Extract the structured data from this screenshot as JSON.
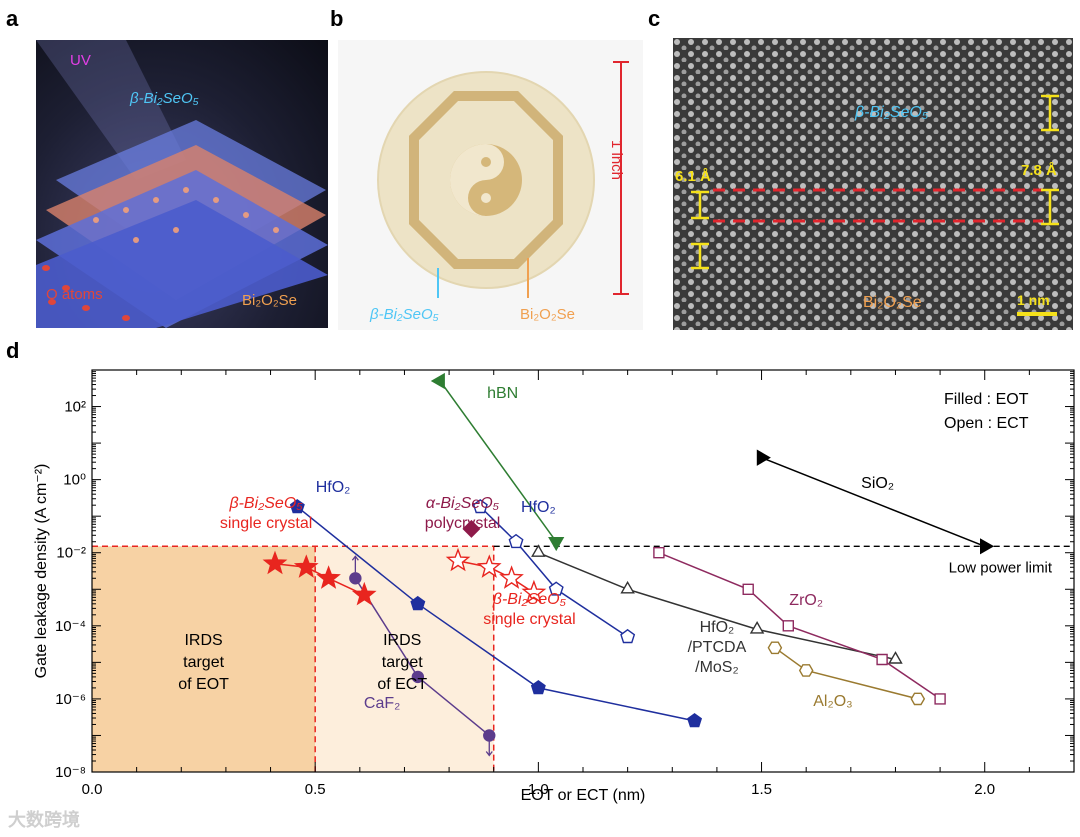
{
  "panels": {
    "a": {
      "letter": "a",
      "uv": "UV",
      "top_layer": "β-Bi₂SeO₅",
      "o_atoms": "O atoms",
      "bottom_layer": "Bi₂O₂Se"
    },
    "b": {
      "letter": "b",
      "scale": "1 inch",
      "left_label": "β-Bi₂SeO₅",
      "right_label": "Bi₂O₂Se"
    },
    "c": {
      "letter": "c",
      "top_label": "β-Bi₂SeO₅",
      "bottom_label": "Bi₂O₂Se",
      "d1": "6.1 Å",
      "d2": "7.8 Å",
      "scalebar": "1 nm"
    },
    "d": {
      "letter": "d"
    }
  },
  "watermark": "大数跨境",
  "colors": {
    "hbn": "#2e7d32",
    "hfo2": "#1f2f9e",
    "caf2": "#5c3c8c",
    "sio2": "#000000",
    "zro2": "#8e2a5f",
    "al2o3": "#9a7a30",
    "hfo2_ptcda": "#333333",
    "bisa": "#e8251f",
    "alpha": "#8e1a4a",
    "eot_region": "#f7d2a4",
    "ect_region": "#fdeedc"
  },
  "chart_data": {
    "type": "scatter",
    "xlabel": "EOT or ECT (nm)",
    "ylabel": "Gate leakage density (A cm⁻²)",
    "xlim": [
      0.0,
      2.2
    ],
    "ylim": [
      1e-08,
      1000
    ],
    "yscale": "log",
    "xticks": [
      "0.0",
      "0.5",
      "1.0",
      "1.5",
      "2.0"
    ],
    "yticks": [
      "10⁻⁸",
      "10⁻⁶",
      "10⁻⁴",
      "10⁻²",
      "10⁰",
      "10²"
    ],
    "legend_lines": [
      "Filled : EOT",
      "Open : ECT"
    ],
    "low_power_limit": {
      "y": 0.015,
      "label": "Low power limit"
    },
    "regions": [
      {
        "label": [
          "IRDS",
          "target",
          "of EOT"
        ],
        "x": [
          0,
          0.5
        ],
        "y": [
          1e-08,
          0.015
        ]
      },
      {
        "label": [
          "IRDS",
          "target",
          "of ECT"
        ],
        "x": [
          0.5,
          0.9
        ],
        "y": [
          1e-08,
          0.015
        ]
      }
    ],
    "series": [
      {
        "name": "hBN",
        "marker": "tri-left-down",
        "filled": true,
        "color_key": "hbn",
        "points": [
          [
            0.78,
            500
          ],
          [
            1.04,
            0.02
          ]
        ]
      },
      {
        "name": "SiO₂",
        "marker": "tri-right",
        "filled": true,
        "color_key": "sio2",
        "points": [
          [
            1.5,
            4
          ],
          [
            2.0,
            0.015
          ]
        ]
      },
      {
        "name": "HfO₂",
        "marker": "pentagon",
        "filled": true,
        "color_key": "hfo2",
        "points": [
          [
            0.46,
            0.18
          ],
          [
            0.73,
            0.0004
          ],
          [
            1.0,
            2e-06
          ],
          [
            1.35,
            2.5e-07
          ]
        ]
      },
      {
        "name": "HfO₂",
        "marker": "pentagon",
        "filled": false,
        "color_key": "hfo2",
        "points": [
          [
            0.87,
            0.18
          ],
          [
            0.95,
            0.02
          ],
          [
            1.04,
            0.001
          ],
          [
            1.2,
            5e-05
          ]
        ]
      },
      {
        "name": "CaF₂",
        "marker": "circle",
        "filled": true,
        "color_key": "caf2",
        "points": [
          [
            0.59,
            0.002
          ],
          [
            0.73,
            4e-06
          ],
          [
            0.89,
            1e-07
          ]
        ]
      },
      {
        "name": "β-Bi₂SeO₅ single crystal",
        "marker": "star",
        "filled": true,
        "color_key": "bisa",
        "points": [
          [
            0.41,
            0.005
          ],
          [
            0.48,
            0.004
          ],
          [
            0.53,
            0.002
          ],
          [
            0.61,
            0.0007
          ]
        ]
      },
      {
        "name": "β-Bi₂SeO₅ single crystal",
        "marker": "star",
        "filled": false,
        "color_key": "bisa",
        "points": [
          [
            0.82,
            0.006
          ],
          [
            0.89,
            0.004
          ],
          [
            0.94,
            0.002
          ],
          [
            0.99,
            0.0008
          ]
        ]
      },
      {
        "name": "α-Bi₂SeO₅ polycrystal",
        "marker": "diamond",
        "filled": true,
        "color_key": "alpha",
        "points": [
          [
            0.85,
            0.045
          ]
        ]
      },
      {
        "name": "HfO₂/PTCDA/MoS₂",
        "marker": "triangle",
        "filled": false,
        "color_key": "hfo2_ptcda",
        "points": [
          [
            1.0,
            0.01
          ],
          [
            1.2,
            0.001
          ],
          [
            1.49,
            8e-05
          ],
          [
            1.8,
            1.2e-05
          ]
        ]
      },
      {
        "name": "ZrO₂",
        "marker": "square",
        "filled": false,
        "color_key": "zro2",
        "points": [
          [
            1.27,
            0.01
          ],
          [
            1.47,
            0.001
          ],
          [
            1.56,
            0.0001
          ],
          [
            1.77,
            1.2e-05
          ],
          [
            1.9,
            1e-06
          ]
        ]
      },
      {
        "name": "Al₂O₃",
        "marker": "hexagon",
        "filled": false,
        "color_key": "al2o3",
        "points": [
          [
            1.53,
            2.5e-05
          ],
          [
            1.6,
            6e-06
          ],
          [
            1.85,
            1e-06
          ]
        ]
      }
    ],
    "annotations": [
      {
        "text": "hBN",
        "color_key": "hbn"
      },
      {
        "text": "SiO₂",
        "color_key": "sio2"
      },
      {
        "text": "HfO₂",
        "color_key": "hfo2"
      },
      {
        "text": "HfO₂",
        "color_key": "hfo2"
      },
      {
        "text": [
          "β-Bi₂SeO₅",
          "single crystal"
        ],
        "color_key": "bisa"
      },
      {
        "text": [
          "α-Bi₂SeO₅",
          "polycrystal"
        ],
        "color_key": "alpha"
      },
      {
        "text": [
          "β-Bi₂SeO₅",
          "single crystal"
        ],
        "color_key": "bisa"
      },
      {
        "text": "CaF₂",
        "color_key": "caf2"
      },
      {
        "text": "ZrO₂",
        "color_key": "zro2"
      },
      {
        "text": [
          "HfO₂",
          "/PTCDA",
          "/MoS₂"
        ],
        "color_key": "hfo2_ptcda"
      },
      {
        "text": "Al₂O₃",
        "color_key": "al2o3"
      }
    ]
  }
}
